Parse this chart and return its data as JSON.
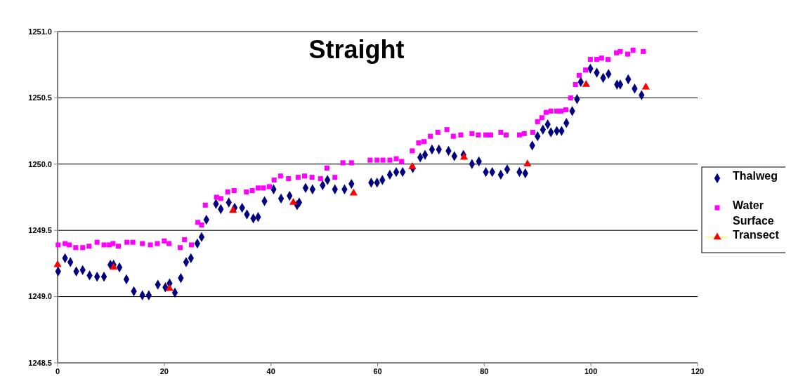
{
  "chart_data": {
    "type": "scatter",
    "title": "Straight",
    "xlim": [
      0,
      120
    ],
    "xticks": [
      0,
      20,
      40,
      60,
      80,
      100,
      120
    ],
    "ylim": [
      1248.5,
      1251
    ],
    "yticks": [
      {
        "value": 1248.5,
        "label": "1248.5"
      },
      {
        "value": 1249,
        "label": "1249.0"
      },
      {
        "value": 1249.5,
        "label": "1249.5"
      },
      {
        "value": 1250,
        "label": "1250.0"
      },
      {
        "value": 1250.5,
        "label": "1250.5"
      },
      {
        "value": 1251,
        "label": "1251.0"
      }
    ],
    "grid": "y",
    "legend": "right",
    "series": [
      {
        "name": "Thalweg",
        "color": "#000080",
        "marker": "diamond",
        "x": [
          0.1,
          1.4,
          2.4,
          3.5,
          4.7,
          6,
          7.4,
          8.7,
          9.9,
          10.5,
          11.6,
          12.9,
          14.3,
          15.9,
          17.1,
          18.8,
          20.2,
          21,
          22,
          23.1,
          24.1,
          25,
          26.2,
          27,
          27.9,
          29.7,
          30.6,
          32.1,
          33.2,
          34.6,
          35.5,
          36.7,
          37.6,
          38.8,
          40.5,
          41.9,
          43.5,
          44.9,
          45.3,
          46.5,
          47.8,
          49.7,
          50.6,
          52,
          53.8,
          55.1,
          58.8,
          59.9,
          60.9,
          62.3,
          63.5,
          64.7,
          66.6,
          68,
          68.9,
          70.2,
          71.5,
          73.3,
          74.4,
          76.1,
          77.7,
          79,
          80.3,
          81.5,
          83.1,
          84.3,
          86.6,
          87.7,
          89,
          90,
          91,
          91.9,
          92.5,
          93.6,
          94.5,
          95.4,
          96.5,
          97.4,
          98.1,
          99.9,
          101.1,
          102.3,
          103.3,
          104.9,
          105.5,
          107,
          108.2,
          109.5
        ],
        "values": [
          1249.19,
          1249.29,
          1249.26,
          1249.19,
          1249.2,
          1249.16,
          1249.15,
          1249.15,
          1249.24,
          1249.24,
          1249.22,
          1249.13,
          1249.04,
          1249.01,
          1249.01,
          1249.09,
          1249.07,
          1249.1,
          1249.03,
          1249.14,
          1249.26,
          1249.29,
          1249.4,
          1249.45,
          1249.58,
          1249.7,
          1249.66,
          1249.71,
          1249.67,
          1249.67,
          1249.62,
          1249.59,
          1249.6,
          1249.72,
          1249.81,
          1249.74,
          1249.76,
          1249.69,
          1249.71,
          1249.82,
          1249.81,
          1249.84,
          1249.88,
          1249.81,
          1249.81,
          1249.85,
          1249.86,
          1249.86,
          1249.88,
          1249.92,
          1249.94,
          1249.94,
          1249.97,
          1250.05,
          1250.07,
          1250.11,
          1250.11,
          1250.1,
          1250.06,
          1250.07,
          1250,
          1250.02,
          1249.94,
          1249.94,
          1249.92,
          1249.96,
          1249.94,
          1249.93,
          1250.14,
          1250.21,
          1250.26,
          1250.3,
          1250.24,
          1250.25,
          1250.25,
          1250.31,
          1250.4,
          1250.49,
          1250.62,
          1250.72,
          1250.69,
          1250.65,
          1250.68,
          1250.6,
          1250.6,
          1250.64,
          1250.57,
          1250.52
        ]
      },
      {
        "name": "Water Surface",
        "color": "#ff00ff",
        "marker": "square",
        "x": [
          0.1,
          1.4,
          2.2,
          3.4,
          4.7,
          5.9,
          7.4,
          8.7,
          9.7,
          10.4,
          11.4,
          13,
          14.1,
          15.9,
          17.4,
          18.7,
          20,
          20.9,
          23,
          23.8,
          25.1,
          26.3,
          27,
          27.7,
          29.8,
          30.6,
          31.9,
          33.1,
          35.4,
          36.5,
          37.6,
          38.6,
          39.7,
          40.6,
          41.8,
          43.3,
          45.1,
          46.3,
          47.7,
          49.3,
          50.5,
          52,
          53.5,
          55.1,
          58.6,
          59.9,
          61,
          62.3,
          63.5,
          64.5,
          66.5,
          67.7,
          68.7,
          69.9,
          71.3,
          73,
          74.2,
          75.6,
          77.7,
          78.9,
          80.3,
          81.2,
          83.1,
          84.1,
          86.6,
          87.5,
          89.1,
          90,
          90.8,
          91.6,
          92.5,
          93.6,
          94.4,
          95.3,
          96.2,
          97.1,
          97.8,
          99,
          99.9,
          101.1,
          102,
          103.2,
          104.8,
          105.5,
          106.9,
          107.9,
          109.8
        ],
        "values": [
          1249.39,
          1249.4,
          1249.39,
          1249.37,
          1249.37,
          1249.38,
          1249.41,
          1249.39,
          1249.39,
          1249.4,
          1249.38,
          1249.41,
          1249.41,
          1249.4,
          1249.39,
          1249.4,
          1249.42,
          1249.4,
          1249.37,
          1249.43,
          1249.39,
          1249.56,
          1249.54,
          1249.69,
          1249.75,
          1249.74,
          1249.79,
          1249.8,
          1249.79,
          1249.8,
          1249.82,
          1249.82,
          1249.83,
          1249.88,
          1249.91,
          1249.89,
          1249.9,
          1249.91,
          1249.9,
          1249.89,
          1249.97,
          1249.9,
          1250.01,
          1250.01,
          1250.03,
          1250.03,
          1250.03,
          1250.03,
          1250.04,
          1250.02,
          1250.1,
          1250.16,
          1250.17,
          1250.21,
          1250.24,
          1250.26,
          1250.21,
          1250.22,
          1250.23,
          1250.22,
          1250.22,
          1250.22,
          1250.24,
          1250.22,
          1250.22,
          1250.23,
          1250.24,
          1250.32,
          1250.35,
          1250.39,
          1250.4,
          1250.4,
          1250.4,
          1250.41,
          1250.5,
          1250.6,
          1250.67,
          1250.71,
          1250.79,
          1250.79,
          1250.8,
          1250.79,
          1250.84,
          1250.85,
          1250.83,
          1250.86,
          1250.85
        ]
      },
      {
        "name": "Transect",
        "color": "#ff0000",
        "marker": "triangle",
        "x": [
          0,
          10.5,
          21,
          32.9,
          44.2,
          55.5,
          66.5,
          76.2,
          88.1,
          99.1,
          110.3
        ],
        "values": [
          1249.24,
          1249.22,
          1249.06,
          1249.65,
          1249.71,
          1249.78,
          1249.98,
          1250.05,
          1250,
          1250.6,
          1250.58
        ]
      }
    ]
  }
}
